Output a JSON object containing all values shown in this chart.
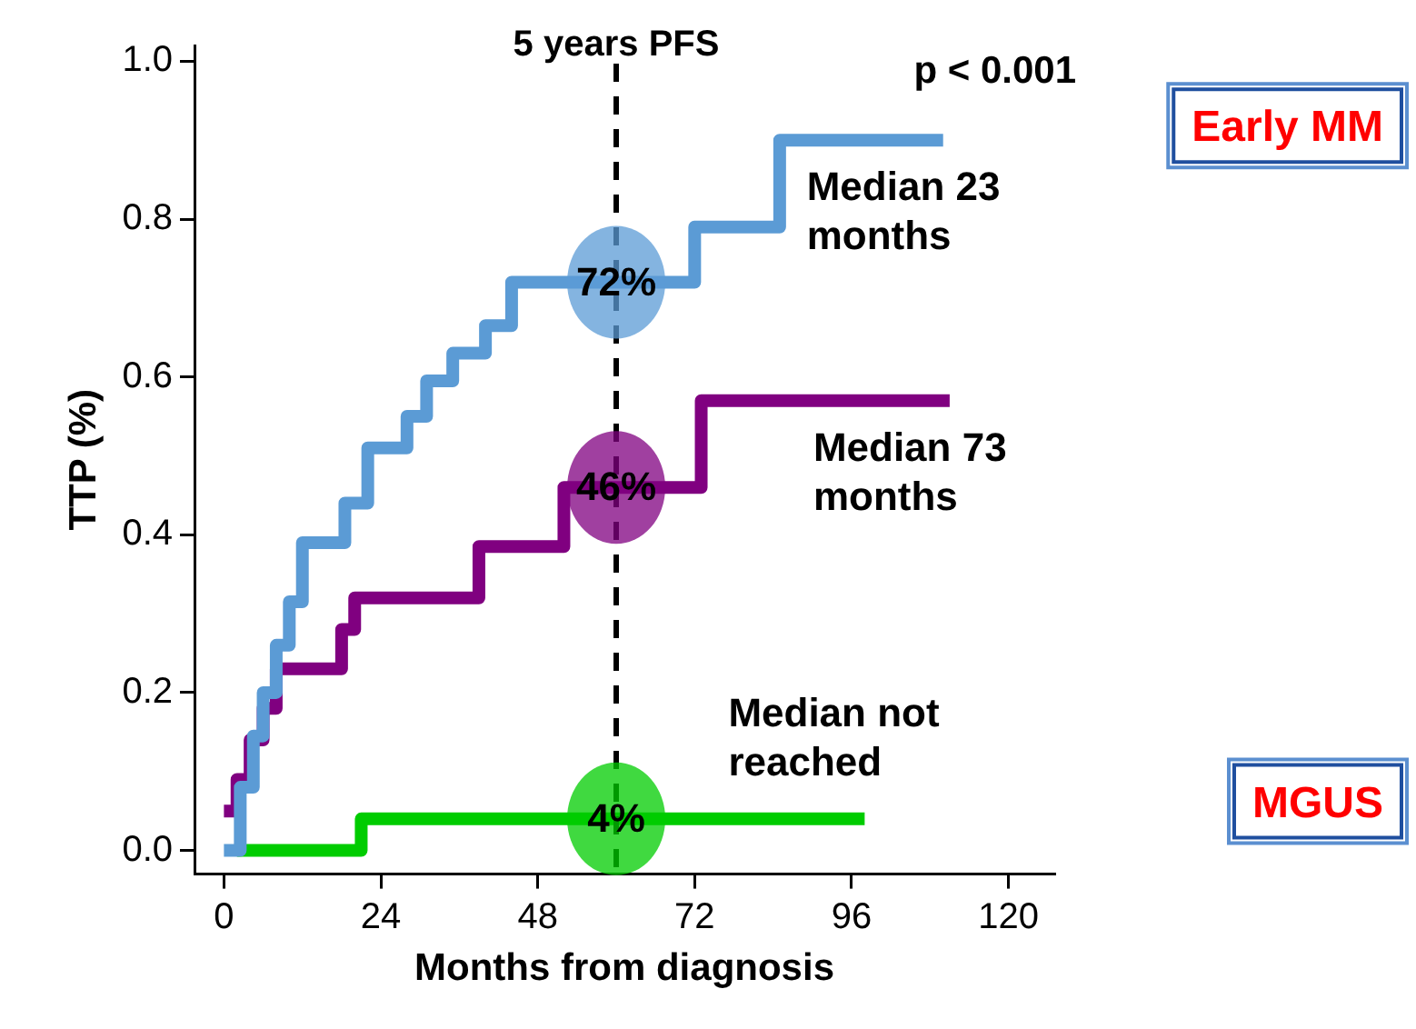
{
  "chart_data": {
    "type": "step",
    "xlabel": "Months from diagnosis",
    "ylabel": "TTP (%)",
    "xlim": [
      -4.5,
      127
    ],
    "xticks": [
      0,
      24,
      48,
      72,
      96,
      120
    ],
    "ylim": [
      -0.03,
      1.02
    ],
    "yticks": [
      {
        "value": 0,
        "label": "0.0"
      },
      {
        "value": 0.2,
        "label": "0.2"
      },
      {
        "value": 0.4,
        "label": "0.4"
      },
      {
        "value": 0.6,
        "label": "0.6"
      },
      {
        "value": 0.8,
        "label": "0.8"
      },
      {
        "value": 1,
        "label": "1.0"
      }
    ],
    "series": [
      {
        "name": "Early MM",
        "color": "#5b9bd5",
        "x": [
          0,
          2.5,
          4.5,
          6,
          8,
          10,
          12,
          18.5,
          22,
          28,
          31,
          35,
          40,
          44,
          72,
          85,
          110
        ],
        "values": [
          0,
          0.08,
          0.145,
          0.2,
          0.26,
          0.315,
          0.39,
          0.44,
          0.51,
          0.55,
          0.595,
          0.63,
          0.665,
          0.72,
          0.79,
          0.9,
          0.9
        ]
      },
      {
        "color": "#800080",
        "x": [
          0,
          2,
          4,
          6,
          8,
          18,
          20,
          39,
          52,
          73,
          111
        ],
        "values": [
          0.05,
          0.09,
          0.14,
          0.18,
          0.23,
          0.28,
          0.32,
          0.385,
          0.46,
          0.57,
          0.57
        ]
      },
      {
        "name": "MGUS",
        "color": "#00cc00",
        "x": [
          2,
          21,
          98
        ],
        "values": [
          0,
          0.04,
          0.04
        ]
      }
    ],
    "ref_lines": [
      {
        "axis": "x",
        "value": 60,
        "label": "5 years PFS",
        "line_style": "dashed",
        "color": "#000000"
      }
    ],
    "annotations": [
      "p < 0.001",
      "72%",
      "46%",
      "4%",
      "Median 23 months",
      "Median 73 months",
      "Median not reached"
    ],
    "legend": false,
    "grid": false,
    "marker": "none",
    "line_style": "solid"
  }
}
